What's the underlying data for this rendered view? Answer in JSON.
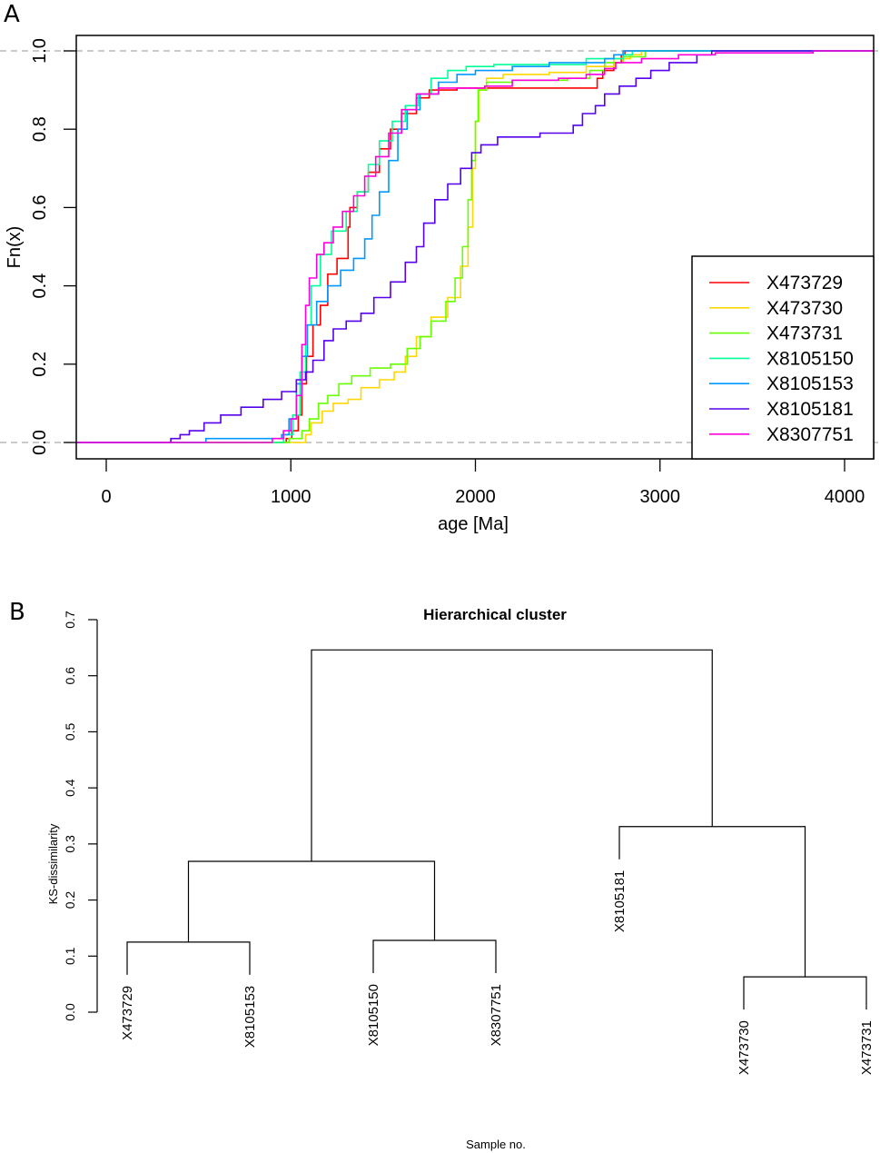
{
  "panels": {
    "a_label": "A",
    "b_label": "B"
  },
  "chart_data": [
    {
      "type": "line",
      "subtype": "ecdf-step",
      "title": "",
      "xlabel": "age [Ma]",
      "ylabel": "Fn(x)",
      "xlim": [
        -160,
        4160
      ],
      "ylim": [
        -0.04,
        1.04
      ],
      "x_ticks": [
        0,
        1000,
        2000,
        3000,
        4000
      ],
      "x_tick_labels": [
        "0",
        "1000",
        "2000",
        "3000",
        "4000"
      ],
      "y_ticks": [
        0.0,
        0.2,
        0.4,
        0.6,
        0.8,
        1.0
      ],
      "y_tick_labels": [
        "0.0",
        "0.2",
        "0.4",
        "0.6",
        "0.8",
        "1.0"
      ],
      "reference_lines": [
        0,
        1
      ],
      "legend_position": "bottom-right",
      "series": [
        {
          "name": "X473729",
          "color": "#FF0000",
          "points": [
            [
              -160,
              0
            ],
            [
              950,
              0
            ],
            [
              975,
              0.01
            ],
            [
              1005,
              0.03
            ],
            [
              1040,
              0.07
            ],
            [
              1060,
              0.15
            ],
            [
              1085,
              0.22
            ],
            [
              1120,
              0.3
            ],
            [
              1160,
              0.35
            ],
            [
              1200,
              0.43
            ],
            [
              1250,
              0.47
            ],
            [
              1310,
              0.55
            ],
            [
              1320,
              0.6
            ],
            [
              1360,
              0.64
            ],
            [
              1420,
              0.69
            ],
            [
              1480,
              0.75
            ],
            [
              1540,
              0.8
            ],
            [
              1600,
              0.84
            ],
            [
              1680,
              0.88
            ],
            [
              1750,
              0.9
            ],
            [
              1900,
              0.905
            ],
            [
              2640,
              0.905
            ],
            [
              2660,
              0.93
            ],
            [
              2690,
              0.95
            ],
            [
              2750,
              0.97
            ],
            [
              2790,
              0.99
            ],
            [
              2810,
              1.0
            ],
            [
              4160,
              1.0
            ]
          ]
        },
        {
          "name": "X473730",
          "color": "#FFD700",
          "points": [
            [
              -160,
              0
            ],
            [
              1050,
              0
            ],
            [
              1080,
              0.02
            ],
            [
              1110,
              0.05
            ],
            [
              1170,
              0.08
            ],
            [
              1230,
              0.1
            ],
            [
              1310,
              0.11
            ],
            [
              1380,
              0.14
            ],
            [
              1480,
              0.16
            ],
            [
              1560,
              0.18
            ],
            [
              1620,
              0.22
            ],
            [
              1680,
              0.27
            ],
            [
              1760,
              0.32
            ],
            [
              1850,
              0.37
            ],
            [
              1920,
              0.45
            ],
            [
              1960,
              0.55
            ],
            [
              1985,
              0.7
            ],
            [
              2000,
              0.82
            ],
            [
              2020,
              0.9
            ],
            [
              2060,
              0.93
            ],
            [
              2150,
              0.94
            ],
            [
              2400,
              0.945
            ],
            [
              2600,
              0.96
            ],
            [
              2750,
              0.98
            ],
            [
              2840,
              0.99
            ],
            [
              2900,
              1.0
            ],
            [
              4160,
              1.0
            ]
          ]
        },
        {
          "name": "X473731",
          "color": "#66FF00",
          "points": [
            [
              -160,
              0
            ],
            [
              940,
              0
            ],
            [
              990,
              0.01
            ],
            [
              1060,
              0.03
            ],
            [
              1100,
              0.06
            ],
            [
              1150,
              0.1
            ],
            [
              1200,
              0.12
            ],
            [
              1260,
              0.15
            ],
            [
              1330,
              0.17
            ],
            [
              1430,
              0.19
            ],
            [
              1540,
              0.2
            ],
            [
              1630,
              0.24
            ],
            [
              1700,
              0.27
            ],
            [
              1760,
              0.31
            ],
            [
              1840,
              0.36
            ],
            [
              1890,
              0.42
            ],
            [
              1930,
              0.5
            ],
            [
              1960,
              0.62
            ],
            [
              1980,
              0.72
            ],
            [
              2000,
              0.82
            ],
            [
              2015,
              0.9
            ],
            [
              2060,
              0.92
            ],
            [
              2200,
              0.925
            ],
            [
              2500,
              0.93
            ],
            [
              2620,
              0.95
            ],
            [
              2700,
              0.97
            ],
            [
              2800,
              0.985
            ],
            [
              2920,
              1.0
            ],
            [
              4160,
              1.0
            ]
          ]
        },
        {
          "name": "X8105150",
          "color": "#00FF99",
          "points": [
            [
              -160,
              0
            ],
            [
              890,
              0
            ],
            [
              960,
              0.02
            ],
            [
              1010,
              0.07
            ],
            [
              1050,
              0.18
            ],
            [
              1080,
              0.3
            ],
            [
              1110,
              0.4
            ],
            [
              1160,
              0.48
            ],
            [
              1220,
              0.54
            ],
            [
              1300,
              0.59
            ],
            [
              1360,
              0.64
            ],
            [
              1420,
              0.71
            ],
            [
              1480,
              0.77
            ],
            [
              1550,
              0.82
            ],
            [
              1620,
              0.86
            ],
            [
              1690,
              0.89
            ],
            [
              1760,
              0.93
            ],
            [
              1850,
              0.95
            ],
            [
              1950,
              0.96
            ],
            [
              2100,
              0.965
            ],
            [
              2550,
              0.965
            ],
            [
              2600,
              0.98
            ],
            [
              2800,
              0.99
            ],
            [
              2850,
              1.0
            ],
            [
              4160,
              1.0
            ]
          ]
        },
        {
          "name": "X8105153",
          "color": "#0099FF",
          "points": [
            [
              -160,
              0
            ],
            [
              530,
              0
            ],
            [
              540,
              0.01
            ],
            [
              900,
              0.01
            ],
            [
              950,
              0.02
            ],
            [
              990,
              0.06
            ],
            [
              1030,
              0.15
            ],
            [
              1060,
              0.22
            ],
            [
              1090,
              0.3
            ],
            [
              1140,
              0.36
            ],
            [
              1200,
              0.4
            ],
            [
              1270,
              0.44
            ],
            [
              1340,
              0.47
            ],
            [
              1400,
              0.52
            ],
            [
              1440,
              0.58
            ],
            [
              1480,
              0.64
            ],
            [
              1530,
              0.72
            ],
            [
              1580,
              0.8
            ],
            [
              1630,
              0.85
            ],
            [
              1700,
              0.89
            ],
            [
              1800,
              0.92
            ],
            [
              1900,
              0.94
            ],
            [
              2000,
              0.95
            ],
            [
              2200,
              0.96
            ],
            [
              2400,
              0.97
            ],
            [
              2700,
              0.98
            ],
            [
              2750,
              0.99
            ],
            [
              2800,
              1.0
            ],
            [
              4160,
              1.0
            ]
          ]
        },
        {
          "name": "X8105181",
          "color": "#5500EE",
          "points": [
            [
              -160,
              0
            ],
            [
              330,
              0
            ],
            [
              350,
              0.01
            ],
            [
              400,
              0.02
            ],
            [
              450,
              0.03
            ],
            [
              530,
              0.05
            ],
            [
              620,
              0.07
            ],
            [
              730,
              0.09
            ],
            [
              850,
              0.11
            ],
            [
              950,
              0.13
            ],
            [
              1030,
              0.16
            ],
            [
              1080,
              0.18
            ],
            [
              1120,
              0.21
            ],
            [
              1180,
              0.26
            ],
            [
              1230,
              0.29
            ],
            [
              1300,
              0.31
            ],
            [
              1380,
              0.33
            ],
            [
              1450,
              0.37
            ],
            [
              1540,
              0.41
            ],
            [
              1620,
              0.46
            ],
            [
              1680,
              0.5
            ],
            [
              1720,
              0.56
            ],
            [
              1780,
              0.62
            ],
            [
              1850,
              0.66
            ],
            [
              1920,
              0.7
            ],
            [
              1980,
              0.74
            ],
            [
              2030,
              0.76
            ],
            [
              2120,
              0.78
            ],
            [
              2350,
              0.79
            ],
            [
              2530,
              0.81
            ],
            [
              2580,
              0.84
            ],
            [
              2650,
              0.86
            ],
            [
              2700,
              0.89
            ],
            [
              2780,
              0.91
            ],
            [
              2870,
              0.93
            ],
            [
              2950,
              0.95
            ],
            [
              3050,
              0.97
            ],
            [
              3200,
              0.99
            ],
            [
              3280,
              1.0
            ],
            [
              4160,
              1.0
            ]
          ]
        },
        {
          "name": "X8307751",
          "color": "#FF00DD",
          "points": [
            [
              -160,
              0
            ],
            [
              840,
              0
            ],
            [
              900,
              0.01
            ],
            [
              960,
              0.03
            ],
            [
              1000,
              0.06
            ],
            [
              1030,
              0.12
            ],
            [
              1060,
              0.25
            ],
            [
              1080,
              0.35
            ],
            [
              1100,
              0.42
            ],
            [
              1140,
              0.48
            ],
            [
              1180,
              0.51
            ],
            [
              1230,
              0.55
            ],
            [
              1280,
              0.59
            ],
            [
              1340,
              0.63
            ],
            [
              1400,
              0.68
            ],
            [
              1460,
              0.73
            ],
            [
              1530,
              0.79
            ],
            [
              1600,
              0.85
            ],
            [
              1680,
              0.89
            ],
            [
              1800,
              0.905
            ],
            [
              2050,
              0.91
            ],
            [
              2200,
              0.925
            ],
            [
              2450,
              0.93
            ],
            [
              2600,
              0.94
            ],
            [
              2700,
              0.955
            ],
            [
              2760,
              0.97
            ],
            [
              2900,
              0.98
            ],
            [
              3100,
              0.99
            ],
            [
              3300,
              0.995
            ],
            [
              3820,
              0.995
            ],
            [
              3830,
              1.0
            ],
            [
              4160,
              1.0
            ]
          ]
        }
      ]
    },
    {
      "type": "dendrogram",
      "title": "Hierarchical cluster",
      "xlabel": "Sample no.",
      "ylabel": "KS-dissimilarity",
      "ylim": [
        0,
        0.7
      ],
      "y_ticks": [
        0.0,
        0.1,
        0.2,
        0.3,
        0.4,
        0.5,
        0.6,
        0.7
      ],
      "y_tick_labels": [
        "0.0",
        "0.1",
        "0.2",
        "0.3",
        "0.4",
        "0.5",
        "0.6",
        "0.7"
      ],
      "leaves": [
        "X473729",
        "X8105153",
        "X8105150",
        "X8307751",
        "X8105181",
        "X473730",
        "X473731"
      ],
      "merges": [
        {
          "left": "X473729",
          "right": "X8105153",
          "height": 0.125
        },
        {
          "left": "X8105150",
          "right": "X8307751",
          "height": 0.128
        },
        {
          "left": "X473730",
          "right": "X473731",
          "height": 0.063
        },
        {
          "left": "(X473729,X8105153)",
          "right": "(X8105150,X8307751)",
          "height": 0.269
        },
        {
          "left": "X8105181",
          "right": "(X473730,X473731)",
          "height": 0.331
        },
        {
          "left": "((X473729,X8105153),(X8105150,X8307751))",
          "right": "(X8105181,(X473730,X473731))",
          "height": 0.646
        }
      ]
    }
  ]
}
